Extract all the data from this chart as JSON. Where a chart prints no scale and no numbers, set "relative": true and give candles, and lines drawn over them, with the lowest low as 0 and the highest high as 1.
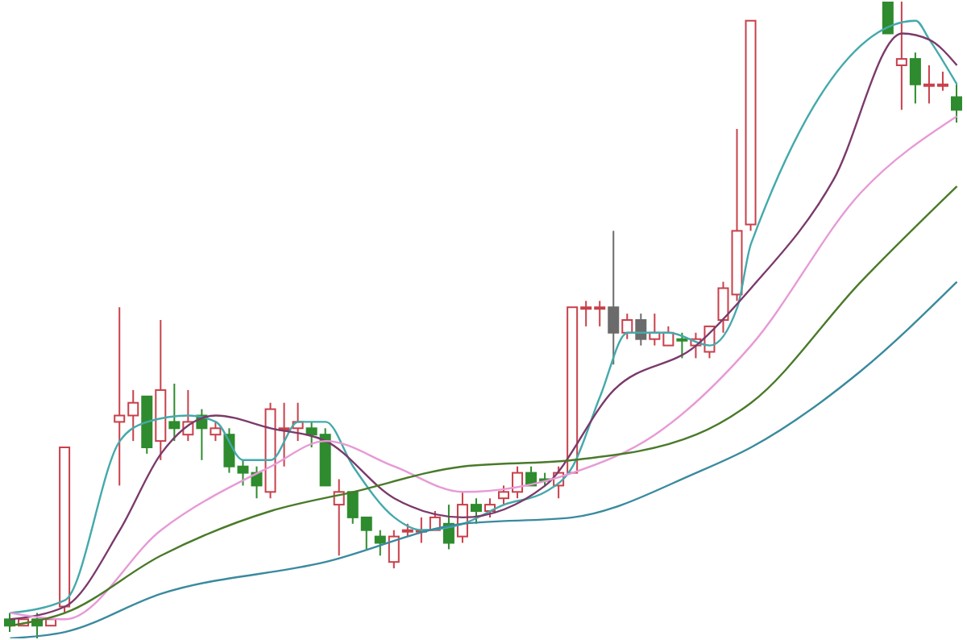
{
  "chart_data": {
    "type": "candlestick",
    "relative": true,
    "categories": [
      null,
      null,
      null,
      null,
      null,
      null,
      null,
      null,
      null,
      null,
      null,
      null,
      null,
      null,
      null,
      null,
      null,
      null,
      null,
      null,
      null,
      null,
      null,
      null,
      null,
      null,
      null,
      null,
      null,
      null,
      null,
      null,
      null,
      null,
      null,
      null,
      null,
      null,
      null,
      null,
      null,
      null,
      null,
      null,
      null,
      null,
      null,
      null,
      null,
      null,
      null,
      null,
      null,
      null,
      null,
      null,
      null,
      null,
      null,
      null,
      null,
      null,
      null,
      null,
      null,
      null,
      null,
      null,
      null,
      null
    ],
    "ohlc": [
      [
        0.03,
        0.04,
        0.01,
        0.02
      ],
      [
        0.02,
        0.03,
        0.02,
        0.03
      ],
      [
        0.03,
        0.04,
        0,
        0.02
      ],
      [
        0.02,
        0.03,
        0.02,
        0.03
      ],
      [
        0.05,
        0.3,
        0.04,
        0.3
      ],
      null,
      null,
      null,
      [
        0.34,
        0.52,
        0.24,
        0.35
      ],
      [
        0.35,
        0.39,
        0.31,
        0.37
      ],
      [
        0.38,
        0.38,
        0.29,
        0.3
      ],
      [
        0.31,
        0.5,
        0.28,
        0.39
      ],
      [
        0.34,
        0.4,
        0.31,
        0.33
      ],
      [
        0.32,
        0.39,
        0.31,
        0.34
      ],
      [
        0.35,
        0.36,
        0.28,
        0.33
      ],
      [
        0.32,
        0.34,
        0.31,
        0.33
      ],
      [
        0.32,
        0.33,
        0.26,
        0.27
      ],
      [
        0.27,
        0.28,
        0.24,
        0.26
      ],
      [
        0.26,
        0.27,
        0.22,
        0.24
      ],
      [
        0.23,
        0.37,
        0.22,
        0.36
      ],
      [
        0.33,
        0.37,
        0.27,
        0.33
      ],
      [
        0.33,
        0.37,
        0.31,
        0.34
      ],
      [
        0.33,
        0.34,
        0.3,
        0.32
      ],
      [
        0.32,
        0.33,
        0.24,
        0.24
      ],
      [
        0.21,
        0.25,
        0.13,
        0.23
      ],
      [
        0.23,
        0.23,
        0.18,
        0.19
      ],
      [
        0.19,
        0.19,
        0.14,
        0.17
      ],
      [
        0.16,
        0.17,
        0.13,
        0.15
      ],
      [
        0.12,
        0.17,
        0.11,
        0.16
      ],
      [
        0.17,
        0.18,
        0.16,
        0.17
      ],
      [
        0.17,
        0.19,
        0.15,
        0.17
      ],
      [
        0.17,
        0.2,
        0.17,
        0.19
      ],
      [
        0.18,
        0.21,
        0.14,
        0.15
      ],
      [
        0.16,
        0.23,
        0.15,
        0.21
      ],
      [
        0.21,
        0.22,
        0.18,
        0.2
      ],
      [
        0.2,
        0.22,
        0.19,
        0.21
      ],
      [
        0.22,
        0.24,
        0.21,
        0.23
      ],
      [
        0.23,
        0.27,
        0.22,
        0.26
      ],
      [
        0.26,
        0.27,
        0.24,
        0.24
      ],
      [
        0.25,
        0.26,
        0.24,
        0.25
      ],
      [
        0.24,
        0.27,
        0.22,
        0.26
      ],
      [
        0.26,
        0.52,
        0.26,
        0.52
      ],
      [
        0.52,
        0.53,
        0.49,
        0.52
      ],
      [
        0.52,
        0.53,
        0.49,
        0.52
      ],
      [
        0.52,
        0.64,
        0.43,
        0.48
      ],
      [
        0.48,
        0.51,
        0.47,
        0.5
      ],
      [
        0.5,
        0.51,
        0.46,
        0.47
      ],
      [
        0.47,
        0.51,
        0.46,
        0.48
      ],
      [
        0.46,
        0.49,
        0.46,
        0.48
      ],
      [
        0.47,
        0.48,
        0.44,
        0.47
      ],
      [
        0.46,
        0.48,
        0.44,
        0.47
      ],
      [
        0.45,
        0.49,
        0.44,
        0.49
      ],
      [
        0.5,
        0.56,
        0.48,
        0.55
      ],
      [
        0.54,
        0.8,
        0.53,
        0.64
      ],
      [
        0.65,
        0.97,
        0.64,
        0.97
      ],
      null,
      null,
      null,
      null,
      null,
      null,
      null,
      null,
      null,
      [
        1,
        1,
        0.95,
        0.95
      ],
      [
        0.9,
        1,
        0.83,
        0.91
      ],
      [
        0.91,
        0.92,
        0.84,
        0.87
      ],
      [
        0.87,
        0.9,
        0.84,
        0.87
      ],
      [
        0.87,
        0.89,
        0.86,
        0.87
      ],
      [
        0.85,
        0.87,
        0.81,
        0.83
      ]
    ],
    "colors": [
      "#2e8b2e",
      "#c8404a",
      "#2e8b2e",
      "#c8404a",
      "#c8404a",
      null,
      null,
      null,
      "#c8404a",
      "#c8404a",
      "#2e8b2e",
      "#c8404a",
      "#2e8b2e",
      "#c8404a",
      "#2e8b2e",
      "#c8404a",
      "#2e8b2e",
      "#2e8b2e",
      "#2e8b2e",
      "#c8404a",
      "#c8404a",
      "#c8404a",
      "#2e8b2e",
      "#2e8b2e",
      "#c8404a",
      "#2e8b2e",
      "#2e8b2e",
      "#2e8b2e",
      "#c8404a",
      "#c8404a",
      "#c8404a",
      "#c8404a",
      "#2e8b2e",
      "#c8404a",
      "#2e8b2e",
      "#c8404a",
      "#c8404a",
      "#c8404a",
      "#2e8b2e",
      "#2e8b2e",
      "#c8404a",
      "#c8404a",
      "#c8404a",
      "#c8404a",
      "#6b6b6b",
      "#c8404a",
      "#6b6b6b",
      "#c8404a",
      "#c8404a",
      "#2e8b2e",
      "#c8404a",
      "#c8404a",
      "#c8404a",
      "#c8404a",
      "#c8404a",
      null,
      null,
      null,
      null,
      null,
      null,
      null,
      null,
      null,
      "#2e8b2e",
      "#c8404a",
      "#2e8b2e",
      "#c8404a",
      "#c8404a",
      "#2e8b2e"
    ],
    "series": [
      {
        "type": "line",
        "color": "#45a9ab",
        "values": [
          0.04,
          null,
          null,
          null,
          0.06,
          null,
          null,
          null,
          0.31,
          null,
          0.34,
          null,
          null,
          0.35,
          null,
          0.34,
          null,
          0.28,
          null,
          0.28,
          null,
          0.34,
          null,
          0.34,
          null,
          0.27,
          null,
          null,
          0.19,
          null,
          0.17,
          null,
          null,
          0.18,
          null,
          null,
          0.21,
          null,
          null,
          0.23,
          null,
          0.27,
          null,
          0.38,
          null,
          0.48,
          null,
          null,
          0.48,
          null,
          null,
          0.46,
          null,
          0.52,
          0.62,
          null,
          null,
          null,
          null,
          null,
          null,
          null,
          null,
          null,
          null,
          null,
          0.97,
          0.94,
          null,
          0.87
        ]
      },
      {
        "type": "line",
        "color": "#7b3a6b",
        "values": [
          0.03,
          null,
          null,
          null,
          0.05,
          null,
          null,
          null,
          0.17,
          null,
          null,
          0.29,
          null,
          null,
          null,
          0.35,
          null,
          null,
          null,
          0.33,
          null,
          null,
          null,
          0.31,
          null,
          null,
          null,
          null,
          0.22,
          null,
          null,
          null,
          null,
          0.19,
          null,
          null,
          null,
          null,
          null,
          0.24,
          null,
          null,
          null,
          null,
          0.39,
          null,
          null,
          null,
          null,
          null,
          0.46,
          null,
          null,
          null,
          0.55,
          null,
          null,
          null,
          null,
          null,
          0.72,
          null,
          null,
          null,
          null,
          0.95,
          null,
          0.94,
          null,
          0.9
        ]
      },
      {
        "type": "line",
        "color": "#e79ad6",
        "values": [
          0.04,
          null,
          null,
          null,
          0.03,
          null,
          null,
          null,
          null,
          null,
          null,
          0.17,
          null,
          null,
          null,
          null,
          null,
          null,
          null,
          0.27,
          null,
          null,
          null,
          0.31,
          null,
          null,
          null,
          null,
          0.27,
          null,
          null,
          null,
          null,
          0.23,
          null,
          null,
          null,
          null,
          null,
          null,
          null,
          0.26,
          null,
          null,
          null,
          null,
          null,
          0.32,
          null,
          null,
          null,
          null,
          null,
          null,
          0.46,
          null,
          null,
          null,
          null,
          null,
          null,
          null,
          0.7,
          null,
          null,
          null,
          null,
          null,
          null,
          0.82
        ]
      },
      {
        "type": "line",
        "color": "#4a7a2a",
        "values": [
          0.02,
          null,
          null,
          null,
          0.04,
          null,
          null,
          null,
          null,
          null,
          null,
          0.13,
          null,
          null,
          null,
          null,
          null,
          null,
          null,
          0.2,
          null,
          null,
          null,
          null,
          null,
          0.23,
          null,
          null,
          null,
          null,
          null,
          null,
          null,
          0.27,
          null,
          null,
          null,
          null,
          null,
          null,
          null,
          0.28,
          null,
          null,
          null,
          null,
          null,
          null,
          null,
          null,
          0.32,
          null,
          null,
          null,
          0.37,
          null,
          null,
          null,
          null,
          null,
          null,
          null,
          0.56,
          null,
          null,
          null,
          null,
          null,
          null,
          0.71
        ]
      },
      {
        "type": "line",
        "color": "#3a8a9e",
        "values": [
          0,
          null,
          null,
          null,
          0.01,
          null,
          null,
          null,
          null,
          null,
          null,
          0.07,
          null,
          null,
          null,
          null,
          null,
          null,
          null,
          null,
          null,
          null,
          null,
          0.12,
          null,
          null,
          null,
          null,
          null,
          null,
          null,
          null,
          null,
          0.18,
          null,
          null,
          null,
          null,
          null,
          null,
          null,
          0.19,
          null,
          null,
          null,
          null,
          null,
          null,
          null,
          null,
          0.26,
          null,
          null,
          null,
          0.3,
          null,
          null,
          null,
          null,
          null,
          null,
          null,
          0.42,
          null,
          null,
          null,
          null,
          null,
          null,
          0.56
        ]
      }
    ]
  }
}
